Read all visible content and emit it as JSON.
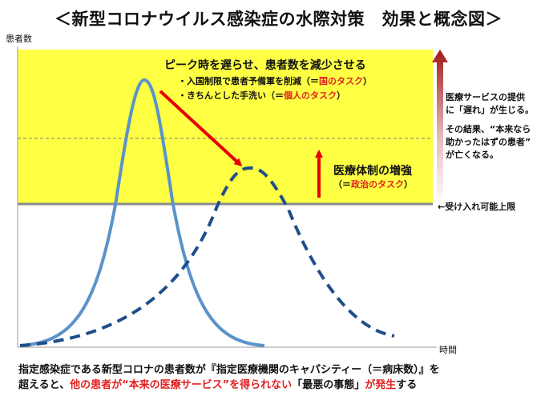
{
  "title": "＜新型コロナウイルス感染症の水際対策　効果と概念図＞",
  "axes": {
    "y_label": "患者数",
    "x_label": "時間"
  },
  "peak": {
    "heading": "ピーク時を遅らせ、患者数を減少させる",
    "bullets": [
      {
        "text": "・入国制限で患者予備軍を削減（＝",
        "highlight": "国のタスク",
        "tail": "）"
      },
      {
        "text": "・きちんとした手洗い（＝",
        "highlight": "個人のタスク",
        "tail": "）"
      }
    ]
  },
  "medical": {
    "heading": "医療体制の増強",
    "task_open": "（＝",
    "task_highlight": "政治のタスク",
    "task_close": "）"
  },
  "capacity": {
    "label": "←受け入れ可能上限"
  },
  "side_note": {
    "lines": [
      "医療サービスの提供",
      "に「遅れ」が生じる。",
      "その結果、“本来なら",
      "助かったはずの患者”",
      "が亡くなる。"
    ]
  },
  "footer": {
    "line1": "指定感染症である新型コロナの患者数が『指定医療機関のキャパシティー（＝病床数）』を",
    "line2_start": "超えると、",
    "line2_red1": "他の患者が“本来の医療サービス”を得られない",
    "line2_mid": "「最悪の事態」",
    "line2_red2": "が発生",
    "line2_end": "する"
  },
  "colors": {
    "zone": "#ffff44",
    "curve_solid": "#5b93c9",
    "curve_dashed": "#1f4f8a",
    "arrow_red": "#e60000",
    "highlight_red": "#e02020"
  }
}
